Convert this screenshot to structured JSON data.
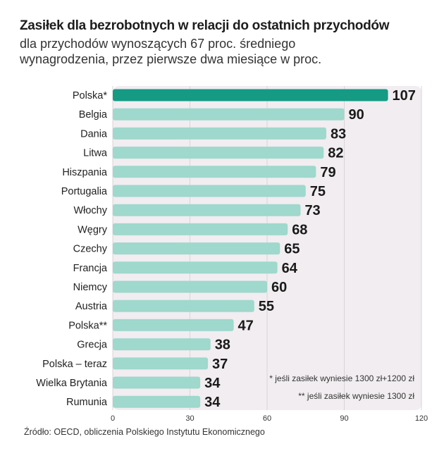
{
  "title": "Zasiłek dla bezrobotnych w relacji do ostatnich przychodów",
  "subtitle": "dla przychodów wynoszących 67 proc. średniego wynagrodzenia, przez pierwsze dwa miesiące w proc.",
  "source": "Źródło: OECD, obliczenia Polskiego Instytutu Ekonomicznego",
  "notes": [
    "* jeśli zasiłek wyniesie 1300 zł+1200 zł",
    "** jeśli zasiłek wyniesie 1300 zł"
  ],
  "colors": {
    "highlight": "#159a84",
    "bar": "#9fd8cd",
    "panel": "#f1edf0",
    "grid": "#d9d4d7"
  },
  "chart_data": {
    "type": "bar",
    "orientation": "horizontal",
    "categories": [
      "Polska*",
      "Belgia",
      "Dania",
      "Litwa",
      "Hiszpania",
      "Portugalia",
      "Włochy",
      "Węgry",
      "Czechy",
      "Francja",
      "Niemcy",
      "Austria",
      "Polska**",
      "Grecja",
      "Polska – teraz",
      "Wielka Brytania",
      "Rumunia"
    ],
    "values": [
      107,
      90,
      83,
      82,
      79,
      75,
      73,
      68,
      65,
      64,
      60,
      55,
      47,
      38,
      37,
      34,
      34
    ],
    "value_labels": [
      "107",
      "90",
      "83",
      "82",
      "79",
      "75",
      "73",
      "68",
      "65",
      "64",
      "60",
      "55",
      "47",
      "38",
      "37",
      "34",
      "34"
    ],
    "highlighted": [
      0
    ],
    "xlim": [
      0,
      120
    ],
    "xticks": [
      0,
      30,
      60,
      90,
      120
    ],
    "xtick_labels": [
      "0",
      "30",
      "60",
      "90",
      "120"
    ],
    "grid": true,
    "legend": false
  }
}
